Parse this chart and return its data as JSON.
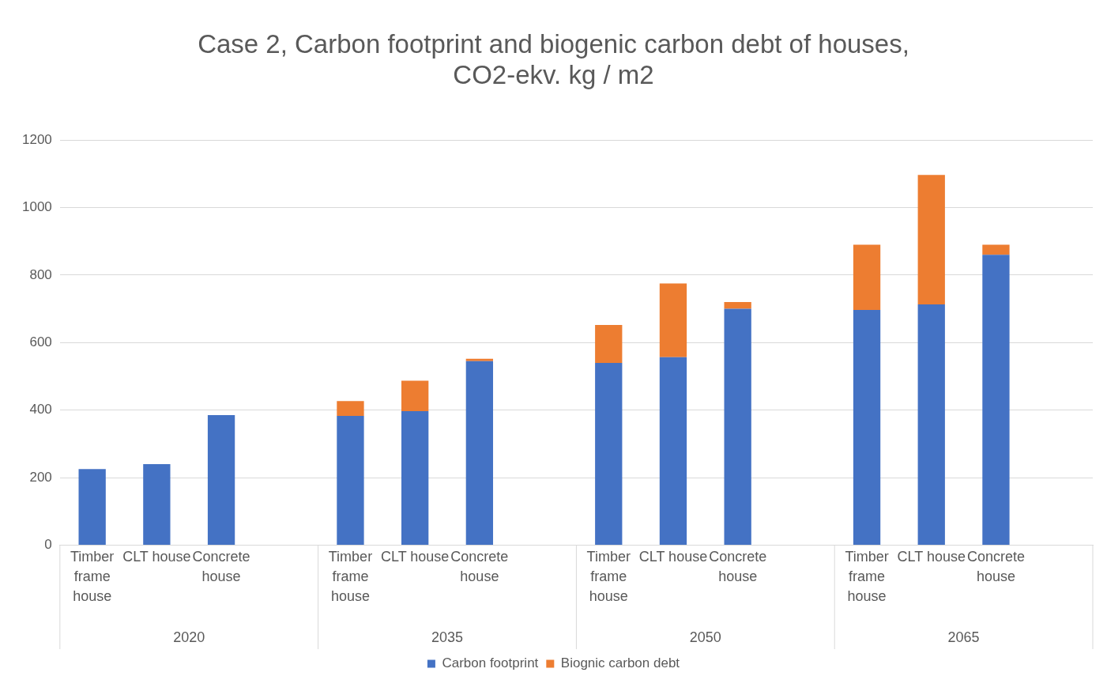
{
  "chart_data": {
    "type": "bar",
    "title": "Case 2, Carbon footprint and biogenic carbon debt of houses, CO2-ekv. kg / m2",
    "stacked": true,
    "categories": [
      "Timber frame house",
      "CLT house",
      "Concrete house",
      null,
      "Timber frame house",
      "CLT house",
      "Concrete house",
      null,
      "Timber frame house",
      "CLT house",
      "Concrete house",
      null,
      "Timber frame house",
      "CLT house",
      "Concrete house",
      null
    ],
    "series": [
      {
        "name": "Carbon footprint",
        "color": "#4472c4",
        "values": [
          225,
          240,
          385,
          null,
          383,
          397,
          545,
          null,
          540,
          557,
          700,
          null,
          697,
          713,
          860,
          null
        ]
      },
      {
        "name": "Biognic carbon debt",
        "color": "#ed7d31",
        "values": [
          0,
          0,
          0,
          null,
          44,
          90,
          7,
          null,
          112,
          218,
          20,
          null,
          193,
          384,
          30,
          null
        ]
      }
    ],
    "ylim": [
      0,
      1200
    ],
    "yticks": [
      0,
      200,
      400,
      600,
      800,
      1000,
      1200
    ],
    "grid": "y",
    "legend": "bottom",
    "annotations": [
      "2020",
      "2035",
      "2050",
      "2065"
    ]
  }
}
